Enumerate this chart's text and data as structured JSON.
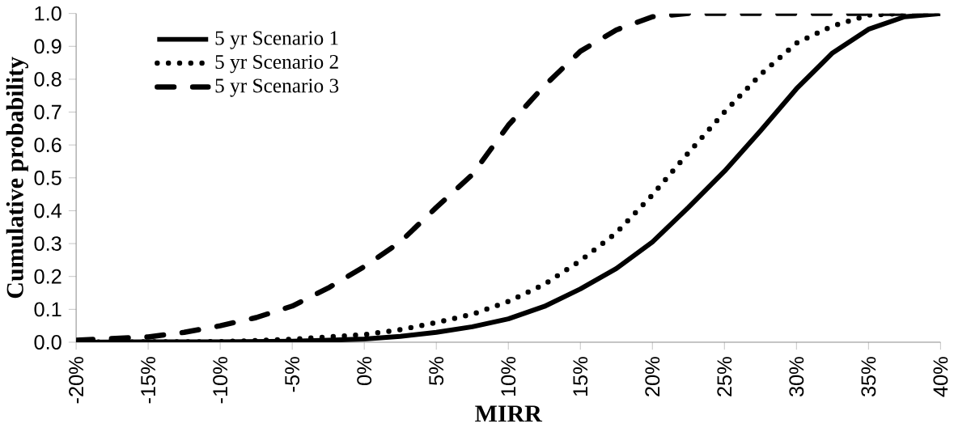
{
  "chart_data": {
    "type": "line",
    "xlabel": "MIRR",
    "ylabel": "Cumulative probability",
    "x": [
      -20,
      -15,
      -12.5,
      -10,
      -7.5,
      -5,
      -2.5,
      0,
      2.5,
      5,
      7.5,
      10,
      12.5,
      15,
      17.5,
      20,
      22.5,
      25,
      27.5,
      30,
      32.5,
      35,
      37.5,
      40
    ],
    "series": [
      {
        "name": "5 yr Scenario 1",
        "color": "#000000",
        "line_style": "solid",
        "values": [
          0,
          0.001,
          0.001,
          0.001,
          0.002,
          0.003,
          0.006,
          0.01,
          0.018,
          0.03,
          0.047,
          0.071,
          0.109,
          0.162,
          0.224,
          0.305,
          0.41,
          0.52,
          0.643,
          0.771,
          0.88,
          0.952,
          0.99,
          1.0
        ]
      },
      {
        "name": "5 yr Scenario 2",
        "color": "#000000",
        "line_style": "dotted",
        "values": [
          0,
          0.001,
          0.001,
          0.002,
          0.005,
          0.009,
          0.016,
          0.023,
          0.038,
          0.06,
          0.085,
          0.124,
          0.176,
          0.248,
          0.333,
          0.448,
          0.576,
          0.7,
          0.814,
          0.91,
          0.962,
          0.995,
          1.0,
          1.0
        ]
      },
      {
        "name": "5 yr Scenario 3",
        "color": "#000000",
        "line_style": "dashed",
        "values": [
          0.006,
          0.016,
          0.03,
          0.05,
          0.075,
          0.11,
          0.165,
          0.23,
          0.305,
          0.41,
          0.51,
          0.66,
          0.78,
          0.885,
          0.95,
          0.99,
          1.0,
          1.0,
          1.0,
          1.0,
          1.0,
          1.0,
          1.0,
          1.0
        ]
      }
    ],
    "xlim": [
      -20,
      40
    ],
    "ylim": [
      0,
      1
    ],
    "xticks": [
      {
        "value": -20,
        "label": "-20%"
      },
      {
        "value": -15,
        "label": "-15%"
      },
      {
        "value": -10,
        "label": "-10%"
      },
      {
        "value": -5,
        "label": "-5%"
      },
      {
        "value": 0,
        "label": "0%"
      },
      {
        "value": 5,
        "label": "5%"
      },
      {
        "value": 10,
        "label": "10%"
      },
      {
        "value": 15,
        "label": "15%"
      },
      {
        "value": 20,
        "label": "20%"
      },
      {
        "value": 25,
        "label": "25%"
      },
      {
        "value": 30,
        "label": "30%"
      },
      {
        "value": 35,
        "label": "35%"
      },
      {
        "value": 40,
        "label": "40%"
      }
    ],
    "yticks": [
      {
        "value": 0,
        "label": "0.0"
      },
      {
        "value": 0.1,
        "label": "0.1"
      },
      {
        "value": 0.2,
        "label": "0.2"
      },
      {
        "value": 0.3,
        "label": "0.3"
      },
      {
        "value": 0.4,
        "label": "0.4"
      },
      {
        "value": 0.5,
        "label": "0.5"
      },
      {
        "value": 0.6,
        "label": "0.6"
      },
      {
        "value": 0.7,
        "label": "0.7"
      },
      {
        "value": 0.8,
        "label": "0.8"
      },
      {
        "value": 0.9,
        "label": "0.9"
      },
      {
        "value": 1.0,
        "label": "1.0"
      }
    ],
    "legend": "top left",
    "grid": false,
    "marker": "none"
  }
}
